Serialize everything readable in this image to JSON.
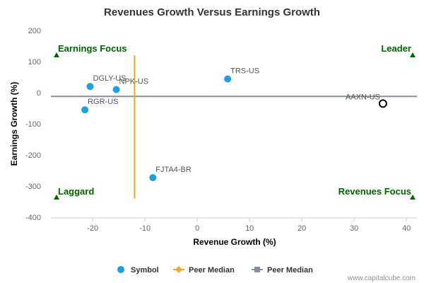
{
  "chart_data": {
    "type": "scatter",
    "title": "Revenues Growth Versus Earnings Growth",
    "xlabel": "Revenue Growth (%)",
    "ylabel": "Earnings Growth (%)",
    "xlim": [
      -28,
      42
    ],
    "ylim": [
      -400,
      200
    ],
    "x_ticks": [
      -20,
      -10,
      0,
      10,
      20,
      30,
      40
    ],
    "y_ticks": [
      200,
      100,
      0,
      -100,
      -200,
      -300,
      -400
    ],
    "grid": false,
    "points": [
      {
        "label": "DGLY-US",
        "x": -20.5,
        "y": 20
      },
      {
        "label": "NPK-US",
        "x": -15.5,
        "y": 10
      },
      {
        "label": "RGR-US",
        "x": -21.5,
        "y": -55
      },
      {
        "label": "TRS-US",
        "x": 5.8,
        "y": 44
      },
      {
        "label": "FJTA4-BR",
        "x": -8.5,
        "y": -273
      }
    ],
    "highlight_point": {
      "label": "AAXN-US",
      "x": 35.5,
      "y": -35
    },
    "peer_median": {
      "x": -12,
      "y": -12
    },
    "quadrants": {
      "top_left": "Earnings Focus",
      "top_right": "Leader",
      "bottom_left": "Laggard",
      "bottom_right": "Revenues Focus"
    },
    "legend": {
      "position": "bottom",
      "items": [
        {
          "name": "Symbol",
          "color": "#1aa0e6"
        },
        {
          "name": "Peer Median",
          "color": "#f5a623"
        },
        {
          "name": "Peer Median",
          "color": "#8a8f9c"
        }
      ]
    },
    "colors": {
      "point": "#1aa0e6",
      "vertical_median": "#f5a623",
      "horizontal_median": "#8a8f9c",
      "quadrant": "#006400"
    }
  },
  "watermark": "www.capitalcube.com"
}
